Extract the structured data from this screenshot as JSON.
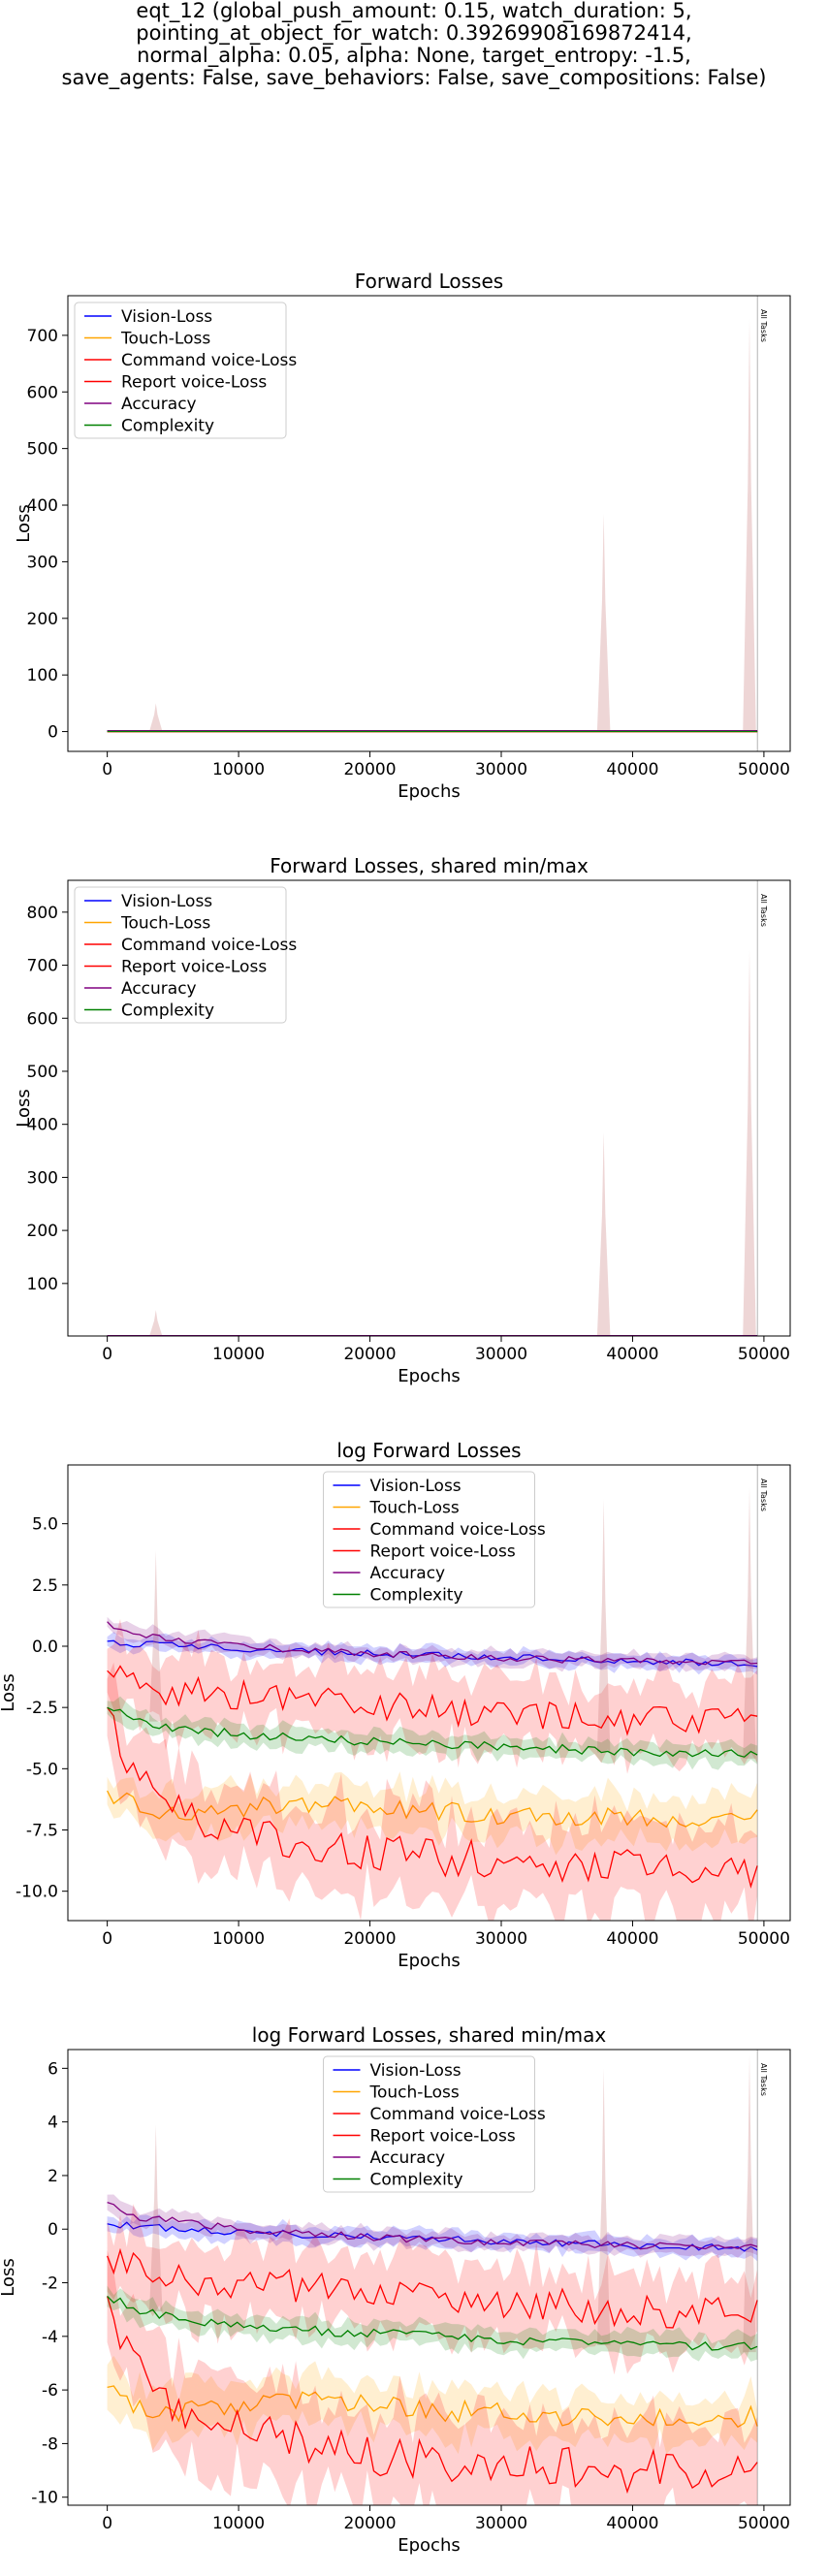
{
  "figure": {
    "title_lines": [
      "eqt_12 (global_push_amount: 0.15, watch_duration: 5,",
      "pointing_at_object_for_watch: 0.39269908169872414,",
      "normal_alpha: 0.05, alpha: None, target_entropy: -1.5,",
      "save_agents: False, save_behaviors: False, save_compositions: False)"
    ]
  },
  "chart_data": [
    {
      "type": "line",
      "title": "Forward Losses",
      "xlabel": "Epochs",
      "ylabel": "Loss",
      "xlim": [
        -3000,
        52000
      ],
      "ylim": [
        -35,
        770
      ],
      "xticks": [
        0,
        10000,
        20000,
        30000,
        40000,
        50000
      ],
      "yticks": [
        0,
        100,
        200,
        300,
        400,
        500,
        600,
        700
      ],
      "log": false,
      "legend_loc": "upper-left",
      "vline": {
        "x": 49500,
        "label": "All Tasks"
      },
      "series": [
        {
          "name": "Vision-Loss",
          "color": "#0000ff",
          "mean": 1.0,
          "band": 0.2
        },
        {
          "name": "Touch-Loss",
          "color": "#ffa500",
          "mean": 0.002,
          "band": 0.001
        },
        {
          "name": "Command voice-Loss",
          "color": "#ff0000",
          "mean": 0.1,
          "band": 0.1,
          "spikes": [
            [
              3700,
              50
            ],
            [
              37800,
              385
            ],
            [
              48900,
              730
            ]
          ]
        },
        {
          "name": "Report voice-Loss",
          "color": "#ff0000",
          "mean": 0.0005,
          "band": 0.0004
        },
        {
          "name": "Accuracy",
          "color": "#800080",
          "mean": 1.5,
          "band": 0.3
        },
        {
          "name": "Complexity",
          "color": "#008000",
          "mean": 0.1,
          "band": 0.02
        }
      ]
    },
    {
      "type": "line",
      "title": "Forward Losses, shared min/max",
      "xlabel": "Epochs",
      "ylabel": "Loss",
      "xlim": [
        -3000,
        52000
      ],
      "ylim": [
        1,
        860
      ],
      "xticks": [
        0,
        10000,
        20000,
        30000,
        40000,
        50000
      ],
      "yticks": [
        100,
        200,
        300,
        400,
        500,
        600,
        700,
        800
      ],
      "log": false,
      "legend_loc": "upper-left",
      "vline": {
        "x": 49500,
        "label": "All Tasks"
      },
      "series": [
        {
          "name": "Vision-Loss",
          "color": "#0000ff",
          "mean": 1.0,
          "band": 0.2
        },
        {
          "name": "Touch-Loss",
          "color": "#ffa500",
          "mean": 0.002,
          "band": 0.001
        },
        {
          "name": "Command voice-Loss",
          "color": "#ff0000",
          "mean": 0.1,
          "band": 0.1,
          "spikes": [
            [
              3700,
              50
            ],
            [
              37800,
              385
            ],
            [
              48900,
              730
            ]
          ]
        },
        {
          "name": "Report voice-Loss",
          "color": "#ff0000",
          "mean": 0.0005,
          "band": 0.0004
        },
        {
          "name": "Accuracy",
          "color": "#800080",
          "mean": 1.5,
          "band": 0.3
        },
        {
          "name": "Complexity",
          "color": "#008000",
          "mean": 0.1,
          "band": 0.02
        }
      ]
    },
    {
      "type": "line",
      "title": "log Forward Losses",
      "xlabel": "Epochs",
      "ylabel": "Loss",
      "xlim": [
        -3000,
        52000
      ],
      "ylim": [
        -11.2,
        7.4
      ],
      "xticks": [
        0,
        10000,
        20000,
        30000,
        40000,
        50000
      ],
      "yticks": [
        -10.0,
        -7.5,
        -5.0,
        -2.5,
        0.0,
        2.5,
        5.0
      ],
      "ytick_labels": [
        "-10.0",
        "-7.5",
        "-5.0",
        "-2.5",
        "0.0",
        "2.5",
        "5.0"
      ],
      "log": true,
      "legend_loc": "upper-center",
      "vline": {
        "x": 49500,
        "label": "All Tasks"
      },
      "series": [
        {
          "name": "Vision-Loss",
          "color": "#0000ff",
          "curve": [
            [
              0,
              0.2
            ],
            [
              2000,
              0.1
            ],
            [
              10000,
              -0.1
            ],
            [
              20000,
              -0.3
            ],
            [
              30000,
              -0.45
            ],
            [
              40000,
              -0.6
            ],
            [
              49500,
              -0.7
            ]
          ],
          "band": 0.3
        },
        {
          "name": "Touch-Loss",
          "color": "#ffa500",
          "curve": [
            [
              0,
              -5.9
            ],
            [
              2000,
              -6.5
            ],
            [
              5000,
              -6.8
            ],
            [
              10000,
              -6.6
            ],
            [
              15000,
              -6.4
            ],
            [
              20000,
              -6.6
            ],
            [
              30000,
              -6.9
            ],
            [
              40000,
              -7.0
            ],
            [
              49500,
              -7.0
            ]
          ],
          "band": 0.9
        },
        {
          "name": "Command voice-Loss",
          "color": "#ff0000",
          "curve": [
            [
              0,
              -1.0
            ],
            [
              800,
              -1.2
            ],
            [
              2000,
              -1.5
            ],
            [
              5000,
              -1.8
            ],
            [
              10000,
              -2.0
            ],
            [
              20000,
              -2.4
            ],
            [
              30000,
              -2.7
            ],
            [
              40000,
              -3.0
            ],
            [
              49500,
              -3.2
            ]
          ],
          "band": 1.4,
          "spikes": [
            [
              3700,
              3.9
            ],
            [
              37800,
              6.0
            ],
            [
              48900,
              6.5
            ]
          ]
        },
        {
          "name": "Report voice-Loss",
          "color": "#ff0000",
          "curve": [
            [
              0,
              -2.5
            ],
            [
              1500,
              -4.8
            ],
            [
              3000,
              -5.8
            ],
            [
              5000,
              -6.6
            ],
            [
              10000,
              -7.6
            ],
            [
              20000,
              -8.4
            ],
            [
              30000,
              -8.8
            ],
            [
              40000,
              -9.0
            ],
            [
              49500,
              -9.2
            ]
          ],
          "band": 1.8
        },
        {
          "name": "Accuracy",
          "color": "#800080",
          "curve": [
            [
              0,
              1.0
            ],
            [
              1500,
              0.5
            ],
            [
              5000,
              0.3
            ],
            [
              10000,
              0.0
            ],
            [
              20000,
              -0.3
            ],
            [
              30000,
              -0.5
            ],
            [
              40000,
              -0.6
            ],
            [
              49500,
              -0.7
            ]
          ],
          "band": 0.3
        },
        {
          "name": "Complexity",
          "color": "#008000",
          "curve": [
            [
              0,
              -2.5
            ],
            [
              2000,
              -3.0
            ],
            [
              5000,
              -3.3
            ],
            [
              10000,
              -3.6
            ],
            [
              20000,
              -3.9
            ],
            [
              30000,
              -4.1
            ],
            [
              40000,
              -4.3
            ],
            [
              49500,
              -4.4
            ]
          ],
          "band": 0.4
        }
      ]
    },
    {
      "type": "line",
      "title": "log Forward Losses, shared min/max",
      "xlabel": "Epochs",
      "ylabel": "Loss",
      "xlim": [
        -3000,
        52000
      ],
      "ylim": [
        -10.3,
        6.7
      ],
      "xticks": [
        0,
        10000,
        20000,
        30000,
        40000,
        50000
      ],
      "yticks": [
        -10,
        -8,
        -6,
        -4,
        -2,
        0,
        2,
        4,
        6
      ],
      "ytick_labels": [
        "-10",
        "-8",
        "-6",
        "-4",
        "-2",
        "0",
        "2",
        "4",
        "6"
      ],
      "log": true,
      "legend_loc": "upper-center",
      "vline": {
        "x": 49500,
        "label": "All Tasks"
      },
      "series": [
        {
          "name": "Vision-Loss",
          "color": "#0000ff",
          "curve": [
            [
              0,
              0.2
            ],
            [
              2000,
              0.1
            ],
            [
              10000,
              -0.1
            ],
            [
              20000,
              -0.3
            ],
            [
              30000,
              -0.45
            ],
            [
              40000,
              -0.6
            ],
            [
              49500,
              -0.7
            ]
          ],
          "band": 0.3
        },
        {
          "name": "Touch-Loss",
          "color": "#ffa500",
          "curve": [
            [
              0,
              -5.9
            ],
            [
              2000,
              -6.5
            ],
            [
              5000,
              -6.8
            ],
            [
              10000,
              -6.6
            ],
            [
              15000,
              -6.4
            ],
            [
              20000,
              -6.6
            ],
            [
              30000,
              -6.9
            ],
            [
              40000,
              -7.0
            ],
            [
              49500,
              -7.0
            ]
          ],
          "band": 0.9
        },
        {
          "name": "Command voice-Loss",
          "color": "#ff0000",
          "curve": [
            [
              0,
              -1.0
            ],
            [
              800,
              -1.2
            ],
            [
              2000,
              -1.5
            ],
            [
              5000,
              -1.8
            ],
            [
              10000,
              -2.0
            ],
            [
              20000,
              -2.4
            ],
            [
              30000,
              -2.7
            ],
            [
              40000,
              -3.0
            ],
            [
              49500,
              -3.2
            ]
          ],
          "band": 1.4,
          "spikes": [
            [
              3700,
              3.9
            ],
            [
              37800,
              6.0
            ],
            [
              48900,
              6.5
            ]
          ]
        },
        {
          "name": "Report voice-Loss",
          "color": "#ff0000",
          "curve": [
            [
              0,
              -2.5
            ],
            [
              1500,
              -4.8
            ],
            [
              3000,
              -5.8
            ],
            [
              5000,
              -6.6
            ],
            [
              10000,
              -7.6
            ],
            [
              20000,
              -8.4
            ],
            [
              30000,
              -8.8
            ],
            [
              40000,
              -9.0
            ],
            [
              49500,
              -9.2
            ]
          ],
          "band": 1.8
        },
        {
          "name": "Accuracy",
          "color": "#800080",
          "curve": [
            [
              0,
              1.0
            ],
            [
              1500,
              0.5
            ],
            [
              5000,
              0.3
            ],
            [
              10000,
              0.0
            ],
            [
              20000,
              -0.3
            ],
            [
              30000,
              -0.5
            ],
            [
              40000,
              -0.6
            ],
            [
              49500,
              -0.7
            ]
          ],
          "band": 0.3
        },
        {
          "name": "Complexity",
          "color": "#008000",
          "curve": [
            [
              0,
              -2.5
            ],
            [
              2000,
              -3.0
            ],
            [
              5000,
              -3.3
            ],
            [
              10000,
              -3.6
            ],
            [
              20000,
              -3.9
            ],
            [
              30000,
              -4.1
            ],
            [
              40000,
              -4.3
            ],
            [
              49500,
              -4.4
            ]
          ],
          "band": 0.4
        }
      ]
    }
  ]
}
